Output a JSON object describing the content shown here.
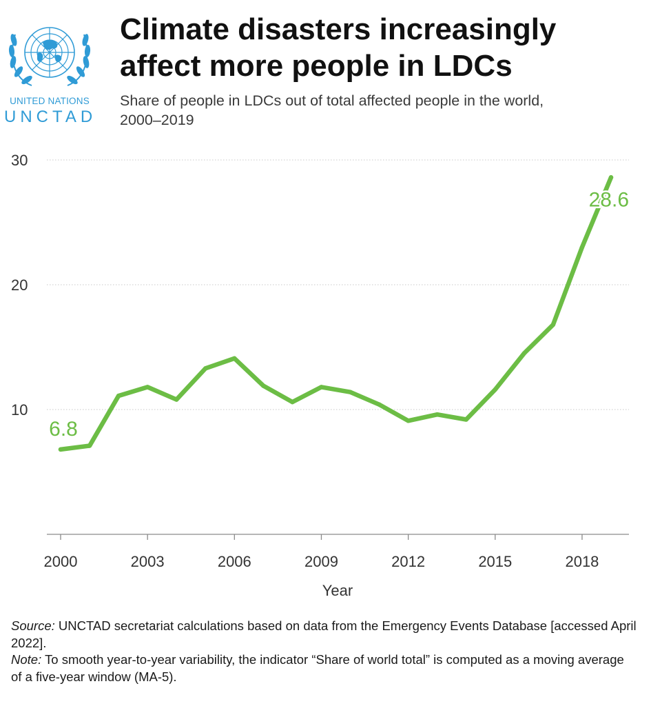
{
  "logo": {
    "line1": "UNITED NATIONS",
    "line2": "UNCTAD",
    "color": "#2f9bd6"
  },
  "title": "Climate disasters increasingly affect more people in LDCs",
  "subtitle": "Share of people in LDCs out of total affected people in the world, 2000–2019",
  "chart_data": {
    "type": "line",
    "x": [
      2000,
      2001,
      2002,
      2003,
      2004,
      2005,
      2006,
      2007,
      2008,
      2009,
      2010,
      2011,
      2012,
      2013,
      2014,
      2015,
      2016,
      2017,
      2018,
      2019
    ],
    "series": [
      {
        "values": [
          6.8,
          7.1,
          11.1,
          11.8,
          10.8,
          13.3,
          14.1,
          11.9,
          10.6,
          11.8,
          11.4,
          10.4,
          9.1,
          9.6,
          9.2,
          11.6,
          14.5,
          16.8,
          23.0,
          28.6
        ],
        "color": "#6cbd45"
      }
    ],
    "xlabel": "Year",
    "ylabel": "",
    "xticks": [
      2000,
      2003,
      2006,
      2009,
      2012,
      2015,
      2018
    ],
    "yticks": [
      10,
      20,
      30
    ],
    "xlim": [
      2000,
      2019
    ],
    "ylim": [
      0,
      30
    ],
    "grid": "horizontal dotted",
    "annotations": [
      {
        "x": 2000,
        "y": 6.8,
        "text": "6.8"
      },
      {
        "x": 2019,
        "y": 28.6,
        "text": "28.6"
      }
    ]
  },
  "footer": {
    "source_label": "Source:",
    "source_text": " UNCTAD secretariat calculations based on data from the Emergency Events Database [accessed April 2022].",
    "note_label": "Note:",
    "note_text": " To smooth year-to-year variability, the indicator “Share of world total” is computed as a moving average of a five-year window (MA-5)."
  }
}
